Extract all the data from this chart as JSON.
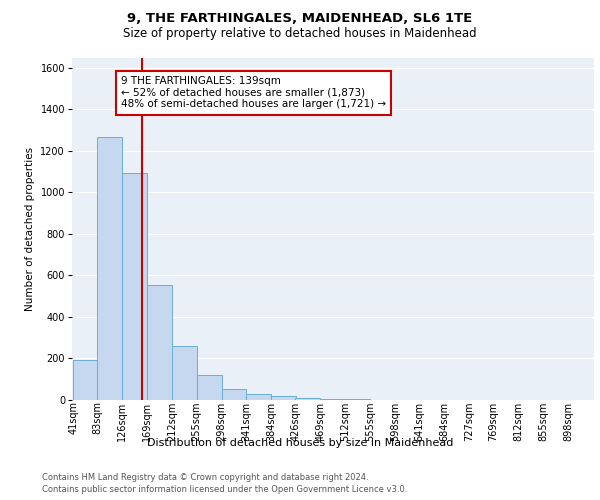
{
  "title1": "9, THE FARTHINGALES, MAIDENHEAD, SL6 1TE",
  "title2": "Size of property relative to detached houses in Maidenhead",
  "xlabel": "Distribution of detached houses by size in Maidenhead",
  "ylabel": "Number of detached properties",
  "footer1": "Contains HM Land Registry data © Crown copyright and database right 2024.",
  "footer2": "Contains public sector information licensed under the Open Government Licence v3.0.",
  "annotation_line1": "9 THE FARTHINGALES: 139sqm",
  "annotation_line2": "← 52% of detached houses are smaller (1,873)",
  "annotation_line3": "48% of semi-detached houses are larger (1,721) →",
  "property_size": 139,
  "bar_color": "#c5d8f0",
  "bar_edge_color": "#6aaed6",
  "vline_color": "#cc0000",
  "background_color": "#eaf0f8",
  "categories": [
    "41sqm",
    "83sqm",
    "126sqm",
    "169sqm",
    "212sqm",
    "255sqm",
    "298sqm",
    "341sqm",
    "384sqm",
    "426sqm",
    "469sqm",
    "512sqm",
    "555sqm",
    "598sqm",
    "641sqm",
    "684sqm",
    "727sqm",
    "769sqm",
    "812sqm",
    "855sqm",
    "898sqm"
  ],
  "bin_starts": [
    41,
    83,
    126,
    169,
    212,
    255,
    298,
    341,
    384,
    426,
    469,
    512,
    555,
    598,
    641,
    684,
    727,
    769,
    812,
    855,
    898
  ],
  "bin_width": 43,
  "values": [
    195,
    1265,
    1095,
    555,
    260,
    120,
    55,
    30,
    20,
    10,
    5,
    3,
    2,
    2,
    1,
    1,
    1,
    1,
    0,
    0,
    0
  ],
  "ylim": [
    0,
    1650
  ],
  "yticks": [
    0,
    200,
    400,
    600,
    800,
    1000,
    1200,
    1400,
    1600
  ],
  "title1_fontsize": 9.5,
  "title2_fontsize": 8.5,
  "ylabel_fontsize": 7.5,
  "xlabel_fontsize": 8,
  "tick_fontsize": 7,
  "footer_fontsize": 6,
  "annot_fontsize": 7.5
}
